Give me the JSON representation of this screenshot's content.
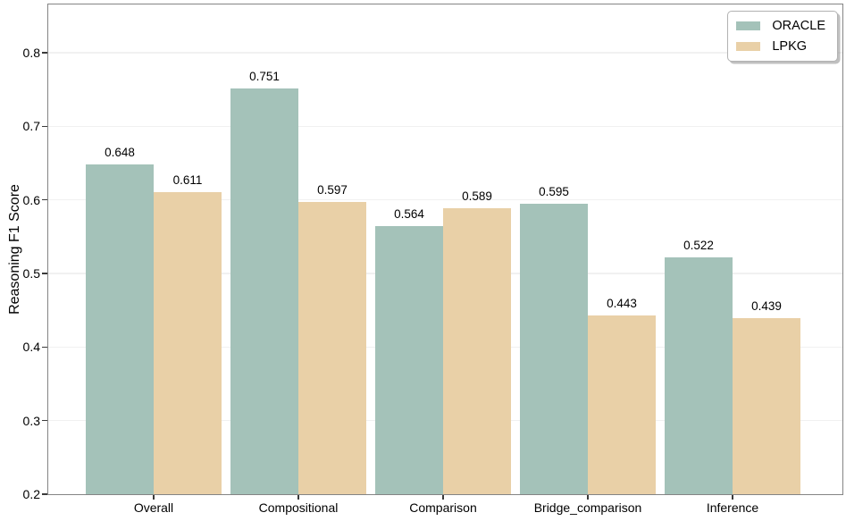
{
  "chart_data": {
    "type": "bar",
    "title": "",
    "xlabel": "",
    "ylabel": "Reasoning F1 Score",
    "categories": [
      "Overall",
      "Compositional",
      "Comparison",
      "Bridge_comparison",
      "Inference"
    ],
    "series": [
      {
        "name": "ORACLE",
        "color": "#a4c2b9",
        "values": [
          0.648,
          0.751,
          0.564,
          0.595,
          0.522
        ]
      },
      {
        "name": "LPKG",
        "color": "#e9d0a7",
        "values": [
          0.611,
          0.597,
          0.589,
          0.443,
          0.439
        ]
      }
    ],
    "yticks": [
      0.2,
      0.3,
      0.4,
      0.5,
      0.6,
      0.7,
      0.8
    ],
    "ylim": [
      0.2,
      0.8656
    ],
    "grid": true,
    "legend_position": "upper right",
    "value_label_decimals": 3,
    "colors": {
      "grid": "#f1f1f1",
      "spine": "#848484",
      "text": "#000000",
      "background": "#ffffff"
    }
  }
}
